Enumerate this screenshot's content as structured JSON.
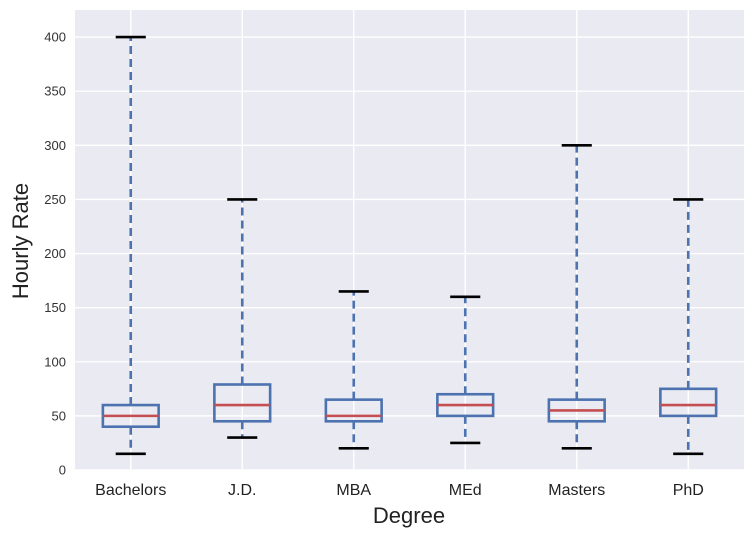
{
  "chart_data": {
    "type": "boxplot",
    "xlabel": "Degree",
    "ylabel": "Hourly Rate",
    "ylim": [
      0,
      425
    ],
    "yticks": [
      0,
      50,
      100,
      150,
      200,
      250,
      300,
      350,
      400
    ],
    "grid": true,
    "categories": [
      "Bachelors",
      "J.D.",
      "MBA",
      "MEd",
      "Masters",
      "PhD"
    ],
    "boxes": [
      {
        "category": "Bachelors",
        "whisker_low": 15,
        "q1": 40,
        "median": 50,
        "q3": 60,
        "whisker_high": 400
      },
      {
        "category": "J.D.",
        "whisker_low": 30,
        "q1": 45,
        "median": 60,
        "q3": 79,
        "whisker_high": 250
      },
      {
        "category": "MBA",
        "whisker_low": 20,
        "q1": 45,
        "median": 50,
        "q3": 65,
        "whisker_high": 165
      },
      {
        "category": "MEd",
        "whisker_low": 25,
        "q1": 50,
        "median": 60,
        "q3": 70,
        "whisker_high": 160
      },
      {
        "category": "Masters",
        "whisker_low": 20,
        "q1": 45,
        "median": 55,
        "q3": 65,
        "whisker_high": 300
      },
      {
        "category": "PhD",
        "whisker_low": 15,
        "q1": 50,
        "median": 60,
        "q3": 75,
        "whisker_high": 250
      }
    ],
    "colors": {
      "background": "#eaeaf2",
      "grid": "#ffffff",
      "box": "#4c72b0",
      "median": "#c44e52",
      "cap": "#000000"
    }
  }
}
